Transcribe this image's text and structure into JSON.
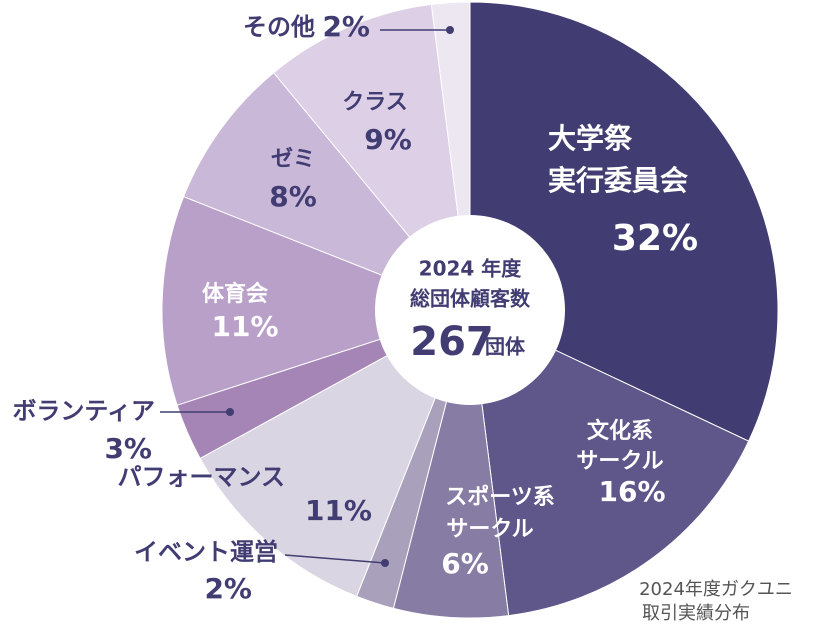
{
  "chart_data": {
    "type": "pie",
    "categories": [
      [
        "大学祭",
        "実行委員会"
      ],
      [
        "文化系",
        "サークル"
      ],
      [
        "スポーツ系",
        "サークル"
      ],
      [
        "イベント運営"
      ],
      [
        "パフォーマンス"
      ],
      [
        "ボランティア"
      ],
      [
        "体育会"
      ],
      [
        "ゼミ"
      ],
      [
        "クラス"
      ],
      [
        "その他"
      ]
    ],
    "values": [
      32,
      16,
      6,
      2,
      11,
      3,
      11,
      8,
      9,
      2
    ],
    "value_labels": [
      "32%",
      "16%",
      "6%",
      "2%",
      "11%",
      "3%",
      "11%",
      "8%",
      "9%",
      "2%"
    ],
    "colors": [
      "#413d72",
      "#5f5689",
      "#877ca4",
      "#a9a0bb",
      "#d9d5e2",
      "#a585b6",
      "#b8a0c8",
      "#c9b8d7",
      "#dccfe6",
      "#ede7f1"
    ],
    "center": {
      "year": "2024 年度",
      "label": "総団体顧客数",
      "total": "267",
      "unit": "団体"
    },
    "note": [
      "2024年度ガクユニ",
      "取引実績分布"
    ]
  }
}
